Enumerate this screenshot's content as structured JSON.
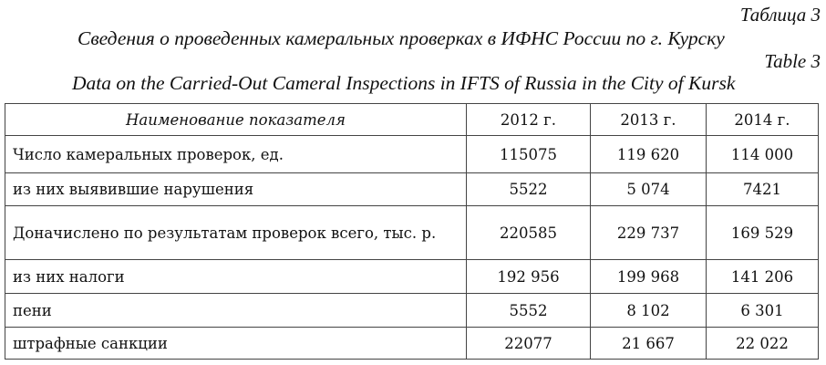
{
  "caption": {
    "table_label_ru": "Таблица 3",
    "title_ru": "Сведения о проведенных камеральных проверках в ИФНС России по г. Курску",
    "table_label_en": "Table 3",
    "title_en": "Data on the Carried-Out Cameral Inspections in IFTS of Russia in the City of  Kursk"
  },
  "table": {
    "headers": [
      "Наименование показателя",
      "2012 г.",
      "2013 г.",
      "2014 г."
    ],
    "rows": [
      {
        "label": "Число камеральных проверок, ед.",
        "values": [
          "115075",
          "119 620",
          "114 000"
        ]
      },
      {
        "label": "из них выявившие нарушения",
        "values": [
          "5522",
          "5 074",
          "7421"
        ]
      },
      {
        "label": "Доначислено по результатам проверок всего, тыс. р.",
        "values": [
          "220585",
          "229 737",
          "169 529"
        ]
      },
      {
        "label": "из них налоги",
        "values": [
          "192 956",
          "199 968",
          "141 206"
        ]
      },
      {
        "label": "пени",
        "values": [
          "5552",
          "8 102",
          "6 301"
        ]
      },
      {
        "label": "штрафные санкции",
        "values": [
          "22077",
          "21 667",
          "22 022"
        ]
      }
    ]
  }
}
